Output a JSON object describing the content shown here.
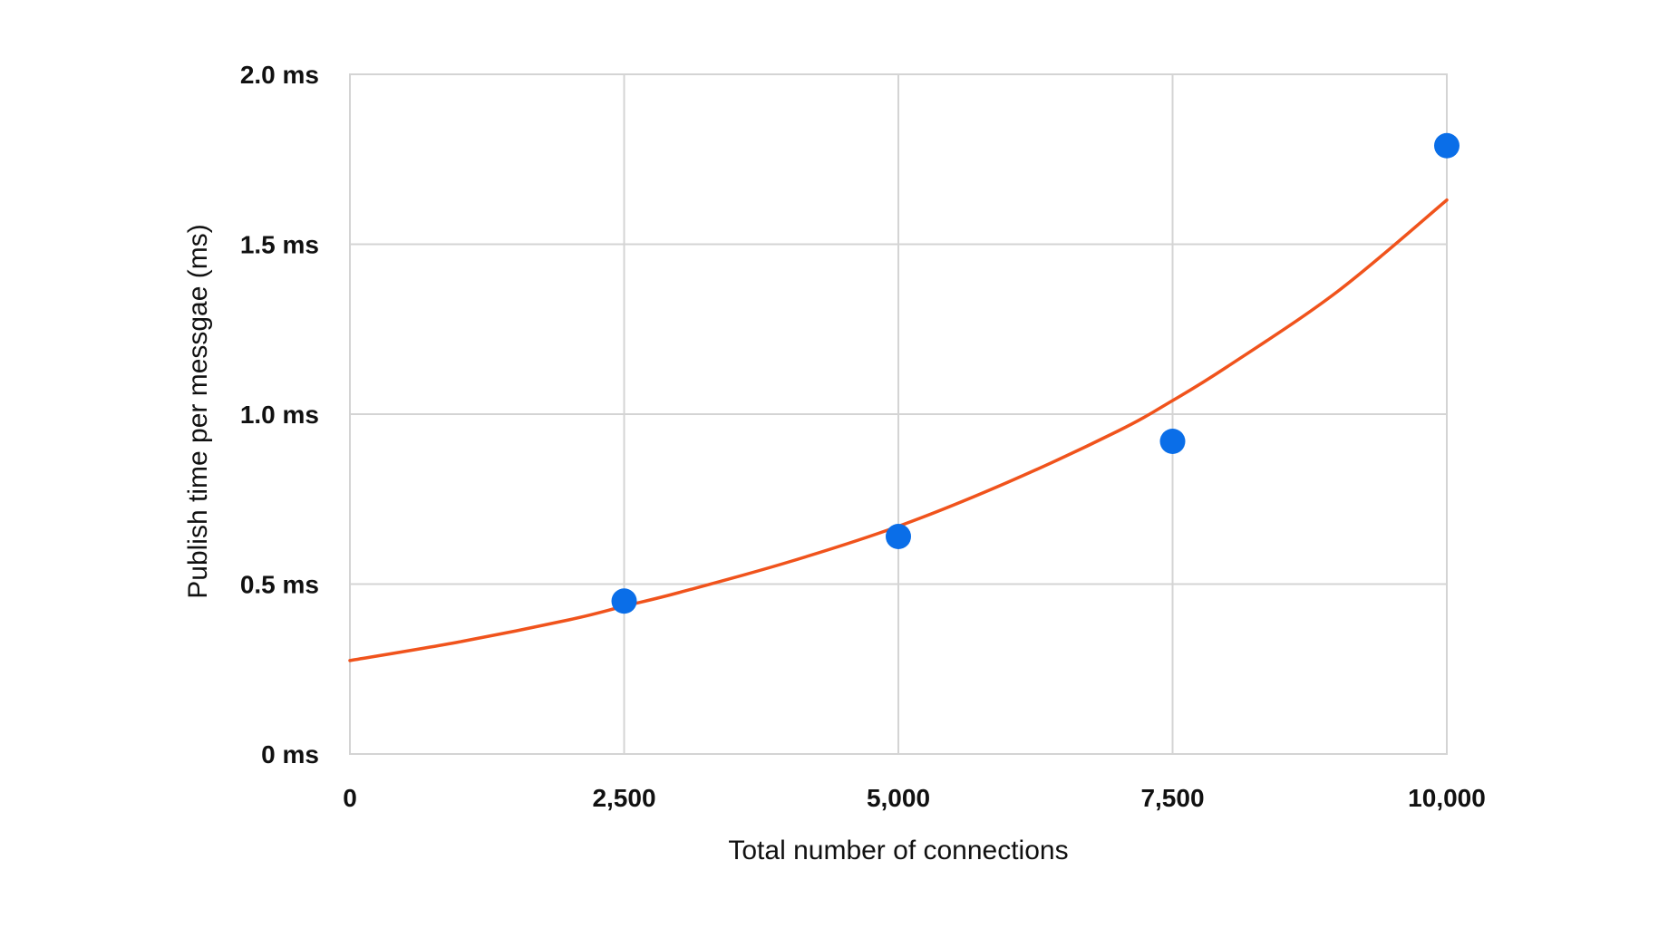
{
  "chart_data": {
    "type": "scatter",
    "title": "",
    "xlabel": "Total number of connections",
    "ylabel": "Publish time per messgae (ms)",
    "xlim": [
      0,
      10000
    ],
    "ylim": [
      0,
      2.0
    ],
    "grid": true,
    "x_ticks": [
      {
        "value": 0,
        "label": "0"
      },
      {
        "value": 2500,
        "label": "2,500"
      },
      {
        "value": 5000,
        "label": "5,000"
      },
      {
        "value": 7500,
        "label": "7,500"
      },
      {
        "value": 10000,
        "label": "10,000"
      }
    ],
    "y_ticks": [
      {
        "value": 0,
        "label": "0 ms"
      },
      {
        "value": 0.5,
        "label": "0.5 ms"
      },
      {
        "value": 1.0,
        "label": "1.0 ms"
      },
      {
        "value": 1.5,
        "label": "1.5 ms"
      },
      {
        "value": 2.0,
        "label": "2.0 ms"
      }
    ],
    "series": [
      {
        "x": [
          2500,
          5000,
          7500,
          10000
        ],
        "y": [
          0.45,
          0.64,
          0.92,
          1.79
        ],
        "color": "#0a6ee8"
      }
    ],
    "trendline": {
      "type": "exponential",
      "x": [
        0,
        1000,
        2000,
        2500,
        3000,
        4000,
        5000,
        6000,
        7000,
        7500,
        8000,
        9000,
        10000
      ],
      "y": [
        0.275,
        0.33,
        0.395,
        0.435,
        0.475,
        0.565,
        0.67,
        0.8,
        0.95,
        1.04,
        1.14,
        1.36,
        1.63
      ],
      "color": "#f0531c"
    }
  }
}
